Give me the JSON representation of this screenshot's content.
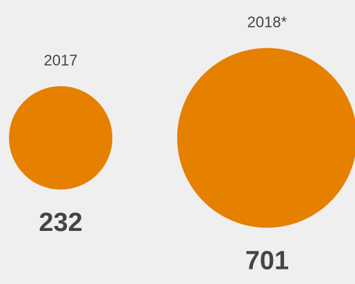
{
  "chart_data": {
    "type": "bubble",
    "categories": [
      "2017",
      "2018*"
    ],
    "values": [
      232,
      701
    ],
    "color": "#e58000"
  }
}
